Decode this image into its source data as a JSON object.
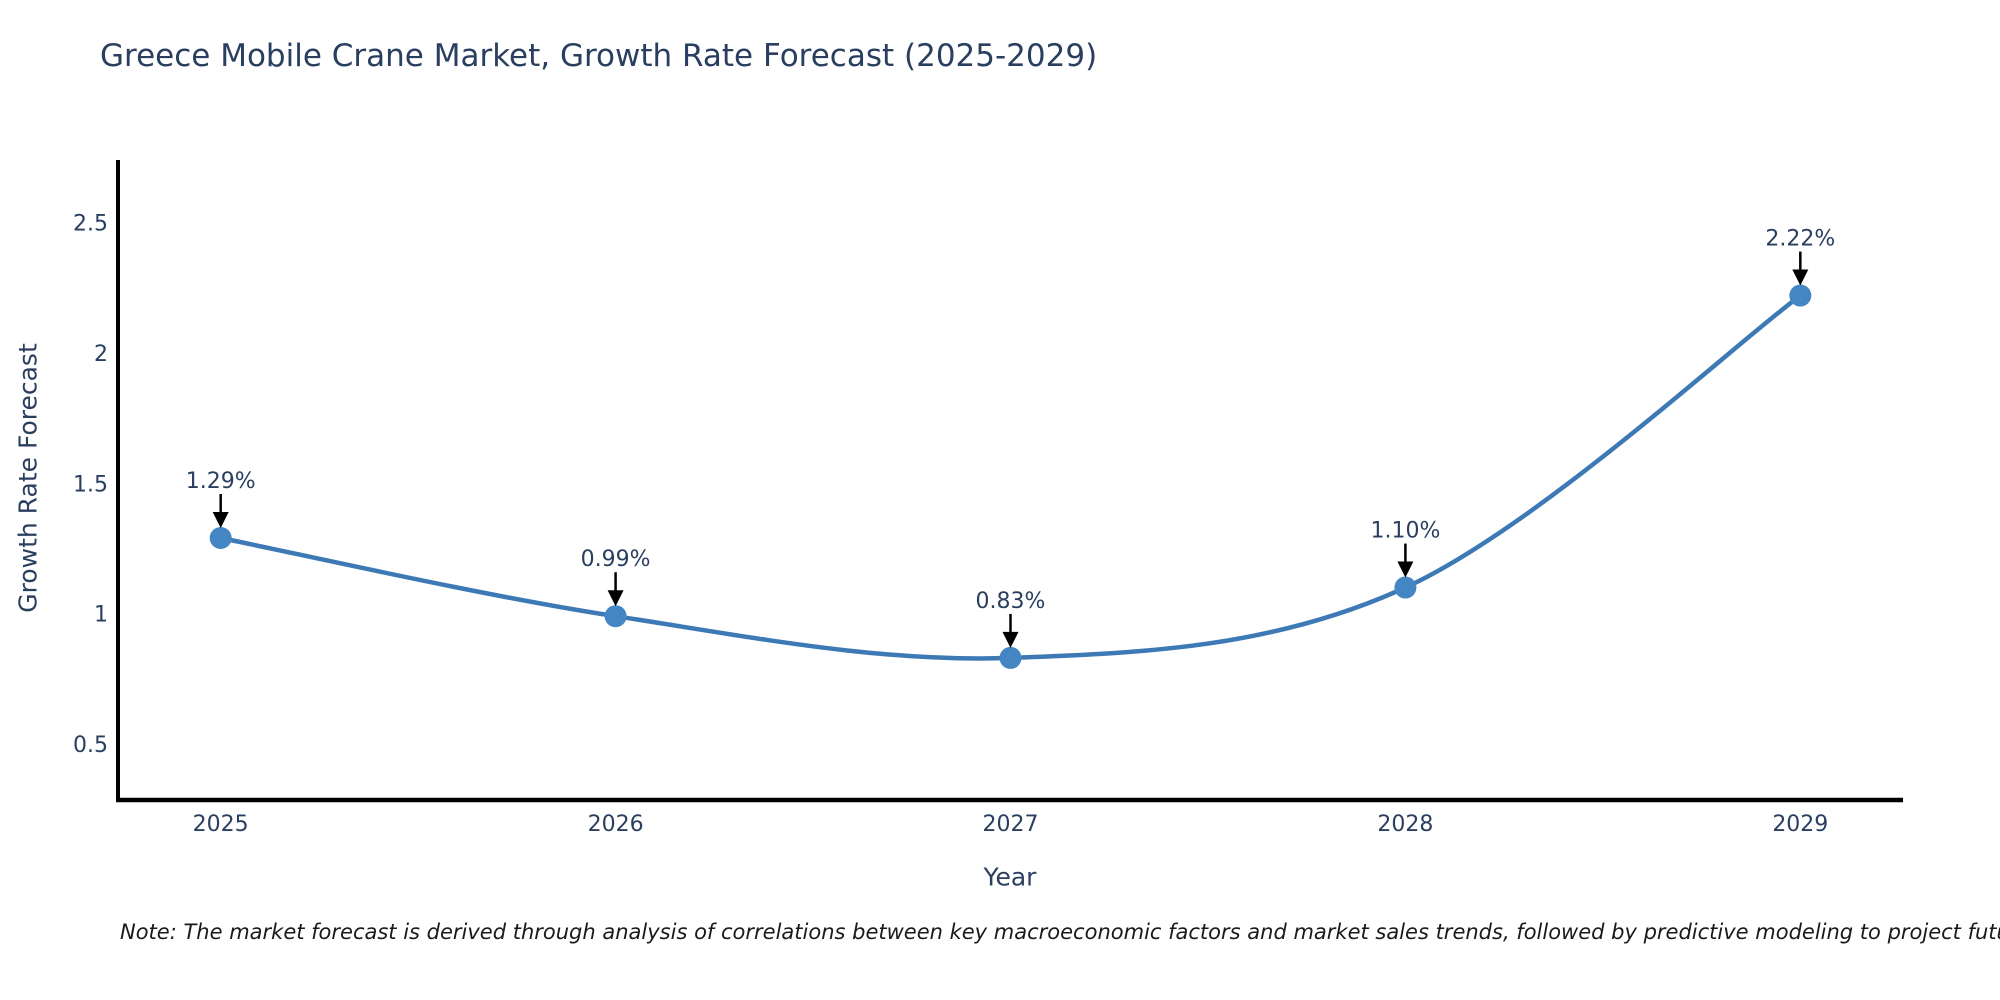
{
  "chart_data": {
    "type": "line",
    "title": "Greece Mobile Crane Market, Growth Rate Forecast (2025-2029)",
    "xlabel": "Year",
    "ylabel": "Growth Rate Forecast",
    "x": [
      2025,
      2026,
      2027,
      2028,
      2029
    ],
    "values": [
      1.29,
      0.99,
      0.83,
      1.1,
      2.22
    ],
    "point_labels": [
      "1.29%",
      "0.99%",
      "0.83%",
      "1.10%",
      "2.22%"
    ],
    "xticks": [
      "2025",
      "2026",
      "2027",
      "2028",
      "2029"
    ],
    "xtick_values": [
      2025,
      2026,
      2027,
      2028,
      2029
    ],
    "yticks": [
      "0.5",
      "1",
      "1.5",
      "2",
      "2.5"
    ],
    "ytick_values": [
      0.5,
      1,
      1.5,
      2,
      2.5
    ],
    "xlim": [
      2024.74,
      2029.26
    ],
    "ylim": [
      0.285,
      2.74
    ],
    "line_shape": "spline",
    "grid": false,
    "legend_position": "none",
    "colors": {
      "line": "#3d7ab5",
      "marker": "#4486c3",
      "axis_line": "#000000",
      "arrow": "#000000",
      "text": "#2a3f5f"
    }
  },
  "note": {
    "text": "Note: The market forecast is derived through analysis of correlations between key macroeconomic factors and market sales trends, followed by predictive modeling to project future sales"
  }
}
